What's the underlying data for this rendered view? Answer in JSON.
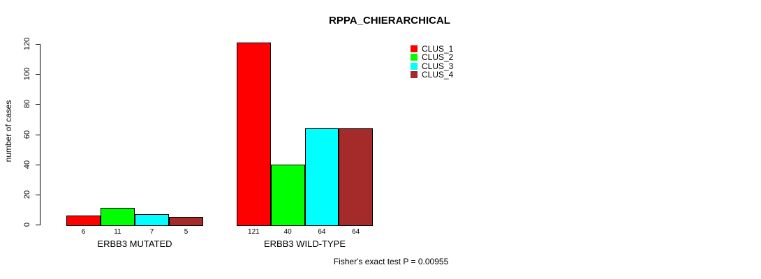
{
  "chart_data": {
    "type": "bar",
    "title": "RPPA_CHIERARCHICAL",
    "ylabel": "number of cases",
    "xlabel": "",
    "ylim": [
      0,
      120
    ],
    "yticks": [
      0,
      20,
      40,
      60,
      80,
      100,
      120
    ],
    "grid": false,
    "legend_position": "top-right",
    "background": "#ffffff",
    "axis_color": "#000000",
    "categories": [
      "ERBB3 MUTATED",
      "ERBB3 WILD-TYPE"
    ],
    "series": [
      {
        "name": "CLUS_1",
        "color": "#FF0000",
        "values": [
          6,
          121
        ]
      },
      {
        "name": "CLUS_2",
        "color": "#00FF00",
        "values": [
          11,
          40
        ]
      },
      {
        "name": "CLUS_3",
        "color": "#00FFFF",
        "values": [
          7,
          64
        ]
      },
      {
        "name": "CLUS_4",
        "color": "#A52A2A",
        "values": [
          5,
          64
        ]
      }
    ],
    "bar_value_labels": [
      [
        6,
        11,
        7,
        5
      ],
      [
        121,
        40,
        64,
        64
      ]
    ],
    "annotation": "Fisher's exact test P = 0.00955"
  }
}
